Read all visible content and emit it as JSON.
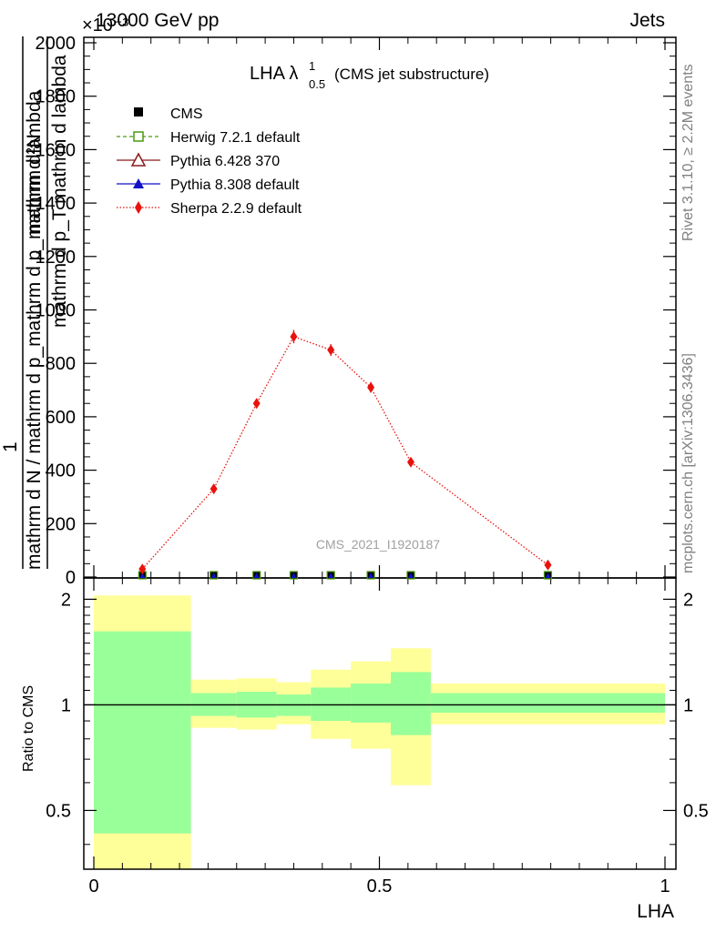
{
  "header": {
    "energy_label": "13000 GeV pp",
    "process_label": "Jets",
    "exponent_label": "×10⁻³"
  },
  "side_labels": {
    "rivet": "Rivet 3.1.10, ≥ 2.2M events",
    "mcplots": "mcplots.cern.ch [arXiv:1306.3436]"
  },
  "plot_title": {
    "main": "LHA λ",
    "superscript": "1",
    "subscript": "0.5",
    "suffix": "(CMS jet substructure)"
  },
  "watermark": "CMS_2021_I1920187",
  "ylabel": {
    "numerator": "1",
    "denominator": "mathrm d N / mathrm d p_mathrm d p_mathrm d lambda",
    "fraction_top": "mathrm d²N",
    "fraction_bottom": "mathrm d p_T mathrm d lambda"
  },
  "legend": [
    {
      "label": "CMS",
      "color": "#000000",
      "marker": "square-filled"
    },
    {
      "label": "Herwig 7.2.1 default",
      "color": "#4a9a0e",
      "marker": "square-open",
      "dash": "dashed"
    },
    {
      "label": "Pythia 6.428 370",
      "color": "#8b1a1a",
      "marker": "triangle-open",
      "dash": "solid"
    },
    {
      "label": "Pythia 8.308 default",
      "color": "#1010c8",
      "marker": "triangle-filled",
      "dash": "solid"
    },
    {
      "label": "Sherpa 2.2.9 default",
      "color": "#e8120c",
      "marker": "diamond-filled",
      "dash": "dotted"
    }
  ],
  "ratio_panel": {
    "ylabel": "Ratio to CMS",
    "ytick_labels": [
      "0.5",
      "1",
      "2"
    ],
    "green_color": "#99ff99",
    "yellow_color": "#ffff99"
  },
  "chart_data": {
    "type": "line",
    "title": "LHA λ^1_0.5 (CMS jet substructure)",
    "xlabel": "LHA",
    "x_tick_labels": [
      "0",
      "0.5",
      "1"
    ],
    "xlim": [
      0,
      1
    ],
    "main": {
      "ylim": [
        0,
        2000
      ],
      "y_multiplier": "10^-3",
      "ytick_labels": [
        "0",
        "200",
        "400",
        "600",
        "800",
        "1000",
        "1200",
        "1400",
        "1600",
        "1800",
        "2000"
      ],
      "series": [
        {
          "name": "CMS",
          "x": [
            0.085,
            0.21,
            0.285,
            0.35,
            0.415,
            0.485,
            0.555,
            0.795
          ],
          "y": [
            0,
            0,
            0,
            0,
            0,
            0,
            0,
            0
          ]
        },
        {
          "name": "Sherpa 2.2.9 default",
          "x": [
            0.085,
            0.21,
            0.285,
            0.35,
            0.415,
            0.485,
            0.555,
            0.795
          ],
          "y": [
            30,
            330,
            650,
            900,
            850,
            710,
            430,
            45
          ],
          "err": [
            8,
            10,
            18,
            25,
            22,
            20,
            12,
            6
          ]
        }
      ]
    },
    "ratio": {
      "yscale": "log",
      "ylim": [
        0.34,
        2.3
      ],
      "reference": 1,
      "bins": [
        {
          "x0": 0.0,
          "x1": 0.17,
          "green": [
            0.43,
            1.62
          ],
          "yellow": [
            0.34,
            2.05
          ]
        },
        {
          "x0": 0.17,
          "x1": 0.25,
          "green": [
            0.93,
            1.08
          ],
          "yellow": [
            0.86,
            1.18
          ]
        },
        {
          "x0": 0.25,
          "x1": 0.32,
          "green": [
            0.92,
            1.09
          ],
          "yellow": [
            0.85,
            1.19
          ]
        },
        {
          "x0": 0.32,
          "x1": 0.38,
          "green": [
            0.93,
            1.07
          ],
          "yellow": [
            0.88,
            1.16
          ]
        },
        {
          "x0": 0.38,
          "x1": 0.45,
          "green": [
            0.9,
            1.12
          ],
          "yellow": [
            0.8,
            1.26
          ]
        },
        {
          "x0": 0.45,
          "x1": 0.52,
          "green": [
            0.89,
            1.15
          ],
          "yellow": [
            0.75,
            1.33
          ]
        },
        {
          "x0": 0.52,
          "x1": 0.59,
          "green": [
            0.82,
            1.24
          ],
          "yellow": [
            0.59,
            1.45
          ]
        },
        {
          "x0": 0.59,
          "x1": 1.0,
          "green": [
            0.95,
            1.08
          ],
          "yellow": [
            0.88,
            1.15
          ]
        }
      ]
    }
  }
}
